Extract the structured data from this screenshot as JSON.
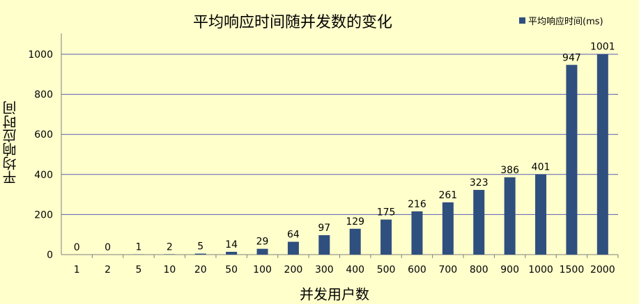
{
  "chart_data": {
    "type": "bar",
    "title": "平均响应时间随并发数的变化",
    "xlabel": "并发用户数",
    "ylabel": "平均响应时间",
    "ylim": [
      0,
      1000
    ],
    "yticks": [
      0,
      200,
      400,
      600,
      800,
      1000
    ],
    "grid": true,
    "legend_position": "top-right",
    "categories": [
      "1",
      "2",
      "5",
      "10",
      "20",
      "50",
      "100",
      "200",
      "300",
      "400",
      "500",
      "600",
      "700",
      "800",
      "900",
      "1000",
      "1500",
      "2000"
    ],
    "series": [
      {
        "name": "平均响应时间(ms)",
        "color": "#2F4F7F",
        "values": [
          0,
          0,
          1,
          2,
          5,
          14,
          29,
          64,
          97,
          129,
          175,
          216,
          261,
          323,
          386,
          401,
          947,
          1001
        ]
      }
    ]
  }
}
